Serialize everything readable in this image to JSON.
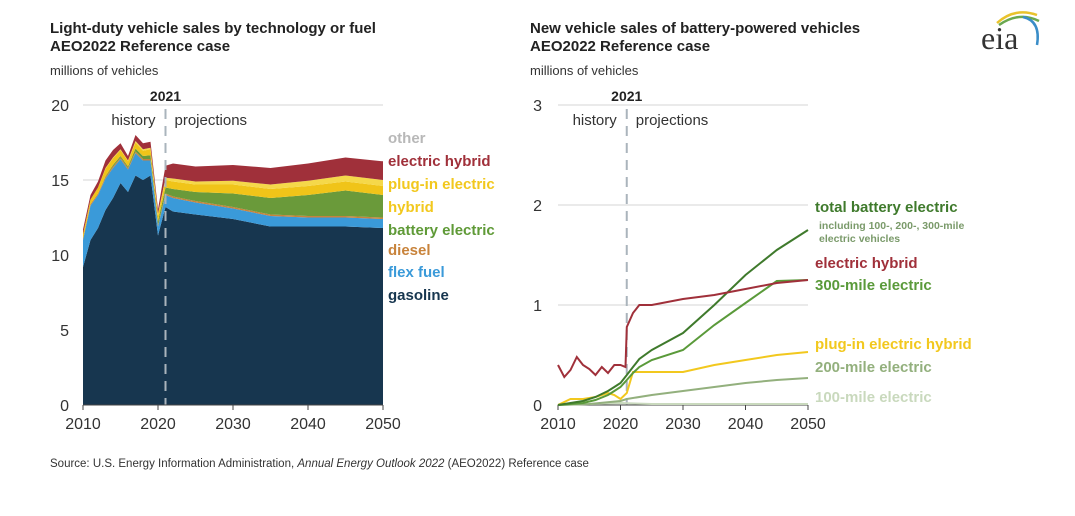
{
  "source": {
    "prefix": "Source: U.S. Energy Information Administration, ",
    "italic": "Annual Energy Outlook 2022",
    "suffix": " (AEO2022) Reference case"
  },
  "logo": {
    "text": "eia"
  },
  "chart_data": [
    {
      "type": "area",
      "title": "Light-duty vehicle sales by technology or fuel",
      "subtitle": "AEO2022 Reference case",
      "ylabel": "millions of vehicles",
      "xlabel": "",
      "xlim": [
        2010,
        2050
      ],
      "ylim": [
        0,
        20
      ],
      "xticks": [
        2010,
        2020,
        2030,
        2040,
        2050
      ],
      "yticks": [
        0,
        5,
        10,
        15,
        20
      ],
      "grid": true,
      "divider": {
        "year": 2021,
        "label": "2021",
        "left_label": "history",
        "right_label": "projections"
      },
      "legend_placement": "right",
      "x": [
        2010,
        2011,
        2012,
        2013,
        2014,
        2015,
        2016,
        2017,
        2018,
        2019,
        2020,
        2021,
        2022,
        2025,
        2030,
        2035,
        2040,
        2045,
        2050
      ],
      "series": [
        {
          "name": "gasoline",
          "color": "#17364f",
          "values": [
            9.2,
            11.0,
            11.8,
            13.0,
            13.8,
            14.8,
            14.2,
            15.3,
            15.0,
            15.3,
            11.3,
            13.2,
            12.9,
            12.7,
            12.4,
            11.9,
            11.9,
            11.9,
            11.8
          ]
        },
        {
          "name": "flex fuel",
          "color": "#3a9ad9",
          "values": [
            1.8,
            2.3,
            2.2,
            2.1,
            2.0,
            1.6,
            1.5,
            1.5,
            1.3,
            1.0,
            0.6,
            0.8,
            0.9,
            0.8,
            0.7,
            0.7,
            0.6,
            0.6,
            0.6
          ]
        },
        {
          "name": "diesel",
          "color": "#c8833b",
          "values": [
            0.1,
            0.1,
            0.1,
            0.1,
            0.1,
            0.1,
            0.1,
            0.1,
            0.1,
            0.1,
            0.1,
            0.1,
            0.1,
            0.1,
            0.1,
            0.1,
            0.1,
            0.1,
            0.1
          ]
        },
        {
          "name": "battery electric",
          "color": "#6a9a3a",
          "values": [
            0.0,
            0.0,
            0.0,
            0.05,
            0.1,
            0.1,
            0.1,
            0.2,
            0.2,
            0.25,
            0.25,
            0.4,
            0.5,
            0.6,
            0.9,
            1.1,
            1.4,
            1.7,
            1.5
          ]
        },
        {
          "name": "hybrid",
          "color": "#f0c419",
          "values": [
            0.3,
            0.3,
            0.4,
            0.5,
            0.45,
            0.4,
            0.35,
            0.4,
            0.35,
            0.4,
            0.4,
            0.5,
            0.5,
            0.5,
            0.6,
            0.6,
            0.6,
            0.6,
            0.6
          ]
        },
        {
          "name": "plug-in electric hybrid",
          "color": "#f5d84a",
          "values": [
            0.0,
            0.0,
            0.0,
            0.05,
            0.05,
            0.05,
            0.05,
            0.1,
            0.1,
            0.1,
            0.1,
            0.15,
            0.2,
            0.2,
            0.25,
            0.3,
            0.35,
            0.4,
            0.4
          ]
        },
        {
          "name": "electric hybrid",
          "color": "#a0303a",
          "values": [
            0.3,
            0.3,
            0.4,
            0.5,
            0.5,
            0.4,
            0.3,
            0.4,
            0.4,
            0.4,
            0.3,
            0.8,
            1.0,
            1.0,
            1.05,
            1.1,
            1.15,
            1.2,
            1.25
          ]
        },
        {
          "name": "other",
          "color": "#bbbbbb",
          "values": [
            0.0,
            0.0,
            0.0,
            0.0,
            0.0,
            0.0,
            0.0,
            0.0,
            0.0,
            0.0,
            0.0,
            0.0,
            0.0,
            0.0,
            0.0,
            0.0,
            0.0,
            0.0,
            0.0
          ]
        }
      ],
      "legend": [
        {
          "label": "other",
          "color": "#b8b8b8"
        },
        {
          "label": "electric hybrid",
          "color": "#a0303a"
        },
        {
          "label": "plug-in electric",
          "color": "#f2c81e"
        },
        {
          "label": "hybrid",
          "color": "#f2c81e"
        },
        {
          "label": "battery electric",
          "color": "#5f9a37"
        },
        {
          "label": "diesel",
          "color": "#c8833b"
        },
        {
          "label": "flex fuel",
          "color": "#3a9ad9"
        },
        {
          "label": "gasoline",
          "color": "#17364f"
        }
      ]
    },
    {
      "type": "line",
      "title": "New vehicle sales of battery-powered vehicles",
      "subtitle": "AEO2022 Reference case",
      "ylabel": "millions of vehicles",
      "xlabel": "",
      "xlim": [
        2010,
        2050
      ],
      "ylim": [
        0,
        3
      ],
      "xticks": [
        2010,
        2020,
        2030,
        2040,
        2050
      ],
      "yticks": [
        0,
        1,
        2,
        3
      ],
      "grid": true,
      "divider": {
        "year": 2021,
        "label": "2021",
        "left_label": "history",
        "right_label": "projections"
      },
      "legend_placement": "right",
      "series": [
        {
          "name": "electric hybrid",
          "color": "#a0303a",
          "x": [
            2010,
            2011,
            2012,
            2013,
            2014,
            2015,
            2016,
            2017,
            2018,
            2019,
            2020,
            2020.8,
            2021,
            2022,
            2023,
            2025,
            2030,
            2035,
            2040,
            2045,
            2050
          ],
          "values": [
            0.4,
            0.28,
            0.35,
            0.48,
            0.4,
            0.36,
            0.3,
            0.38,
            0.32,
            0.4,
            0.4,
            0.38,
            0.78,
            0.92,
            1.0,
            1.0,
            1.06,
            1.1,
            1.16,
            1.22,
            1.25
          ]
        },
        {
          "name": "total battery electric",
          "color": "#3f7a2c",
          "x": [
            2010,
            2012,
            2014,
            2016,
            2018,
            2019,
            2020,
            2021,
            2022,
            2023,
            2025,
            2030,
            2035,
            2040,
            2045,
            2050
          ],
          "values": [
            0.0,
            0.02,
            0.04,
            0.08,
            0.14,
            0.18,
            0.22,
            0.3,
            0.38,
            0.46,
            0.55,
            0.72,
            1.0,
            1.3,
            1.55,
            1.75
          ]
        },
        {
          "name": "300-mile electric",
          "color": "#5a9a3a",
          "x": [
            2010,
            2012,
            2014,
            2016,
            2018,
            2019,
            2020,
            2021,
            2022,
            2023,
            2025,
            2030,
            2035,
            2040,
            2045,
            2050
          ],
          "values": [
            0.0,
            0.01,
            0.02,
            0.05,
            0.1,
            0.14,
            0.18,
            0.25,
            0.32,
            0.38,
            0.45,
            0.55,
            0.8,
            1.02,
            1.24,
            1.25
          ]
        },
        {
          "name": "plug-in electric hybrid",
          "color": "#f2c81e",
          "x": [
            2010,
            2012,
            2014,
            2016,
            2018,
            2019,
            2020,
            2021,
            2022,
            2025,
            2030,
            2035,
            2040,
            2045,
            2050
          ],
          "values": [
            0.0,
            0.06,
            0.06,
            0.08,
            0.12,
            0.1,
            0.06,
            0.12,
            0.33,
            0.33,
            0.33,
            0.4,
            0.45,
            0.5,
            0.53
          ]
        },
        {
          "name": "200-mile electric",
          "color": "#93b07d",
          "x": [
            2010,
            2015,
            2020,
            2021,
            2025,
            2030,
            2035,
            2040,
            2045,
            2050
          ],
          "values": [
            0.0,
            0.01,
            0.04,
            0.06,
            0.1,
            0.14,
            0.18,
            0.22,
            0.25,
            0.27
          ]
        },
        {
          "name": "100-mile electric",
          "color": "#c9d9bd",
          "x": [
            2010,
            2015,
            2020,
            2025,
            2030,
            2040,
            2050
          ],
          "values": [
            0.0,
            0.01,
            0.02,
            0.01,
            0.01,
            0.01,
            0.01
          ]
        }
      ],
      "legend": [
        {
          "label": "total battery electric",
          "color": "#3f7a2c",
          "note": "including 100-, 200-, 300-mile electric vehicles"
        },
        {
          "label": "electric hybrid",
          "color": "#a0303a"
        },
        {
          "label": "300-mile electric",
          "color": "#5a9a3a"
        },
        {
          "label": "plug-in electric hybrid",
          "color": "#f2c81e"
        },
        {
          "label": "200-mile electric",
          "color": "#93b07d"
        },
        {
          "label": "100-mile electric",
          "color": "#c9d9bd"
        }
      ]
    }
  ]
}
